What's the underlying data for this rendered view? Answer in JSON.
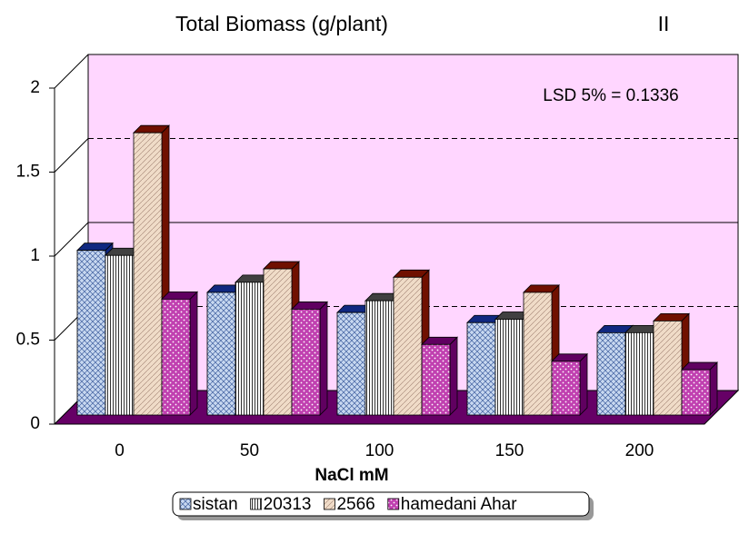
{
  "chart_data": {
    "type": "bar3d",
    "title": "Total Biomass (g/plant)",
    "panel_label": "II",
    "annotation": "LSD 5% = 0.1336",
    "x_label": "NaCl  mM",
    "categories": [
      "0",
      "50",
      "100",
      "150",
      "200"
    ],
    "series": [
      {
        "name": "sistan",
        "color": "#c8d8f0",
        "top_color": "#102880",
        "values": [
          0.98,
          0.73,
          0.61,
          0.55,
          0.49
        ]
      },
      {
        "name": "20313",
        "color": "#ffffff",
        "top_color": "#404040",
        "values": [
          0.95,
          0.79,
          0.68,
          0.57,
          0.49
        ]
      },
      {
        "name": "2566",
        "color": "#f0dcc8",
        "top_color": "#701000",
        "values": [
          1.68,
          0.87,
          0.82,
          0.73,
          0.56
        ]
      },
      {
        "name": "hamedani Ahar",
        "color": "#c040b0",
        "top_color": "#600060",
        "values": [
          0.69,
          0.63,
          0.42,
          0.32,
          0.27
        ]
      }
    ],
    "ylim": [
      0,
      2
    ],
    "yticks": [
      0,
      0.5,
      1,
      1.5,
      2
    ],
    "grid": true,
    "wall_color": "#ffd6ff",
    "floor_color": "#660066"
  }
}
